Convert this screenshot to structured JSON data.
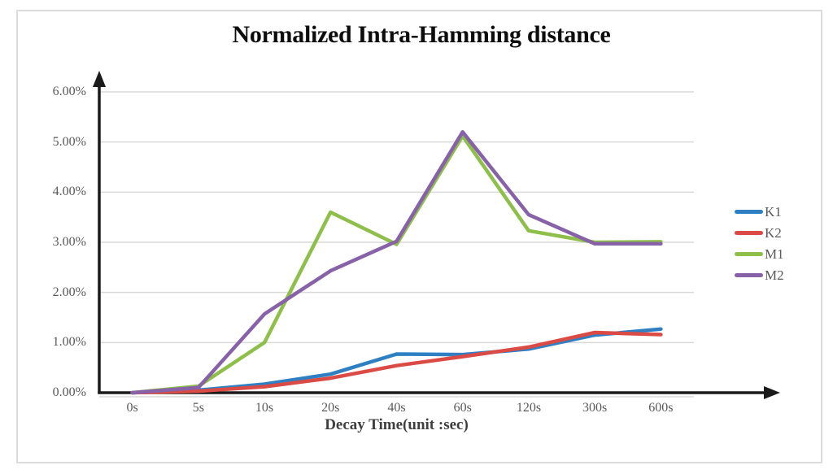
{
  "title": "Normalized Intra-Hamming distance",
  "chart_data": {
    "type": "line",
    "title": "Normalized Intra-Hamming distance",
    "xlabel": "Decay Time(unit :sec)",
    "ylabel": "",
    "categories": [
      "0s",
      "5s",
      "10s",
      "20s",
      "40s",
      "60s",
      "120s",
      "300s",
      "600s"
    ],
    "y_ticks": [
      "0.00%",
      "1.00%",
      "2.00%",
      "3.00%",
      "4.00%",
      "5.00%",
      "6.00%"
    ],
    "ylim": [
      0,
      6
    ],
    "y_unit": "percent",
    "grid": true,
    "legend_position": "right",
    "series": [
      {
        "name": "K1",
        "color": "#2E80C3",
        "values": [
          0.0,
          0.05,
          0.17,
          0.37,
          0.77,
          0.76,
          0.87,
          1.15,
          1.27
        ]
      },
      {
        "name": "K2",
        "color": "#DB4B45",
        "values": [
          0.0,
          0.03,
          0.12,
          0.29,
          0.54,
          0.72,
          0.91,
          1.2,
          1.16
        ]
      },
      {
        "name": "M1",
        "color": "#8EBF4A",
        "values": [
          0.0,
          0.13,
          1.0,
          3.6,
          2.96,
          5.12,
          3.23,
          3.0,
          3.01
        ]
      },
      {
        "name": "M2",
        "color": "#8762A8",
        "values": [
          0.0,
          0.1,
          1.57,
          2.43,
          3.02,
          5.2,
          3.55,
          2.97,
          2.97
        ]
      }
    ]
  },
  "colors": {
    "axis": "#1a1a1a",
    "grid": "#d9d9d9",
    "tick_text": "#595959",
    "frame_border": "#dcdcdc"
  }
}
